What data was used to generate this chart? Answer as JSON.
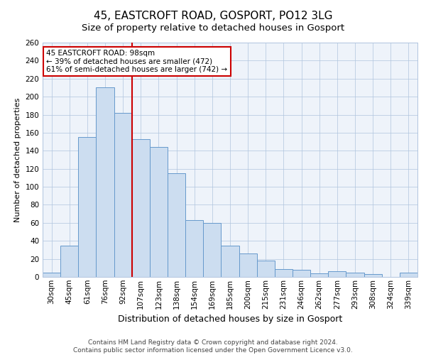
{
  "title": "45, EASTCROFT ROAD, GOSPORT, PO12 3LG",
  "subtitle": "Size of property relative to detached houses in Gosport",
  "xlabel": "Distribution of detached houses by size in Gosport",
  "ylabel": "Number of detached properties",
  "bins": [
    "30sqm",
    "45sqm",
    "61sqm",
    "76sqm",
    "92sqm",
    "107sqm",
    "123sqm",
    "138sqm",
    "154sqm",
    "169sqm",
    "185sqm",
    "200sqm",
    "215sqm",
    "231sqm",
    "246sqm",
    "262sqm",
    "277sqm",
    "293sqm",
    "308sqm",
    "324sqm",
    "339sqm"
  ],
  "values": [
    5,
    35,
    155,
    210,
    182,
    153,
    144,
    115,
    63,
    60,
    35,
    26,
    18,
    9,
    8,
    4,
    6,
    5,
    3,
    0,
    5
  ],
  "bar_color": "#ccddf0",
  "bar_edge_color": "#6699cc",
  "highlight_line_color": "#cc0000",
  "annotation_title": "45 EASTCROFT ROAD: 98sqm",
  "annotation_line1": "← 39% of detached houses are smaller (472)",
  "annotation_line2": "61% of semi-detached houses are larger (742) →",
  "annotation_box_color": "#ffffff",
  "annotation_box_edge": "#cc0000",
  "footer1": "Contains HM Land Registry data © Crown copyright and database right 2024.",
  "footer2": "Contains public sector information licensed under the Open Government Licence v3.0.",
  "ylim": [
    0,
    260
  ],
  "yticks": [
    0,
    20,
    40,
    60,
    80,
    100,
    120,
    140,
    160,
    180,
    200,
    220,
    240,
    260
  ],
  "title_fontsize": 11,
  "subtitle_fontsize": 9.5,
  "xlabel_fontsize": 9,
  "ylabel_fontsize": 8,
  "tick_fontsize": 7.5,
  "annot_fontsize": 7.5,
  "footer_fontsize": 6.5
}
